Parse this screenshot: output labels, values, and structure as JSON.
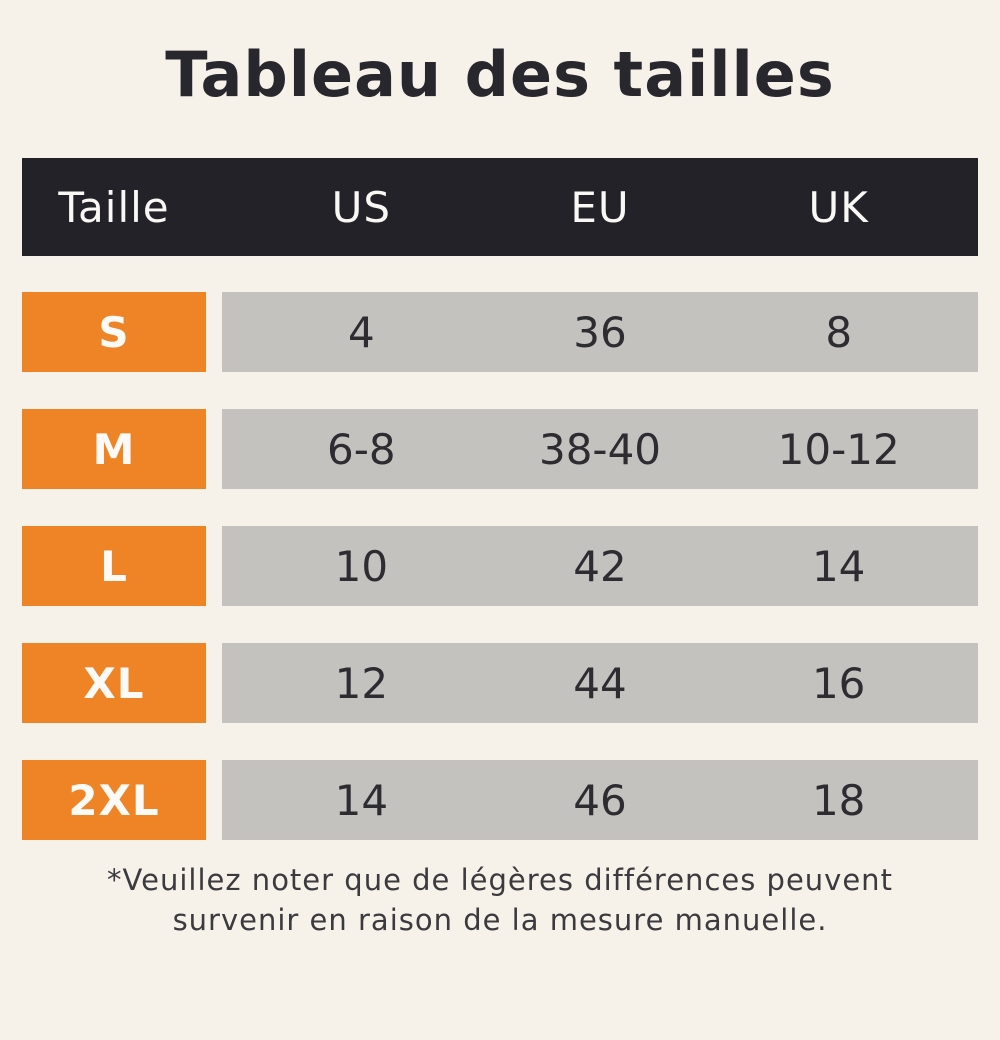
{
  "page": {
    "title": "Tableau des tailles",
    "footnote_line1": "*Veuillez noter que de légères différences peuvent",
    "footnote_line2": "survenir en raison de la mesure manuelle."
  },
  "colors": {
    "background": "#F7F2E9",
    "header_bg": "#232229",
    "accent_orange": "#EF8427",
    "cell_gray": "#C4C2BF",
    "text_dark": "#2D2C31"
  },
  "chart_data": {
    "type": "table",
    "title": "Tableau des tailles",
    "columns": [
      "Taille",
      "US",
      "EU",
      "UK"
    ],
    "rows": [
      {
        "size": "S",
        "us": "4",
        "eu": "36",
        "uk": "8"
      },
      {
        "size": "M",
        "us": "6-8",
        "eu": "38-40",
        "uk": "10-12"
      },
      {
        "size": "L",
        "us": "10",
        "eu": "42",
        "uk": "14"
      },
      {
        "size": "XL",
        "us": "12",
        "eu": "44",
        "uk": "16"
      },
      {
        "size": "2XL",
        "us": "14",
        "eu": "46",
        "uk": "18"
      }
    ],
    "footnote": "*Veuillez noter que de légères différences peuvent survenir en raison de la mesure manuelle."
  }
}
